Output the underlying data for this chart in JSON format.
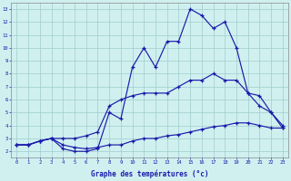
{
  "background_color": "#d0f0f0",
  "grid_color": "#a0cccc",
  "line_color": "#1a1aaa",
  "ylim": [
    1.5,
    13.5
  ],
  "xlim": [
    -0.5,
    23.5
  ],
  "yticks": [
    2,
    3,
    4,
    5,
    6,
    7,
    8,
    9,
    10,
    11,
    12,
    13
  ],
  "xticks": [
    0,
    1,
    2,
    3,
    4,
    5,
    6,
    7,
    8,
    9,
    10,
    11,
    12,
    13,
    14,
    15,
    16,
    17,
    18,
    19,
    20,
    21,
    22,
    23
  ],
  "xlabel": "Graphe des températures (°c)",
  "line_top_y": [
    2.5,
    2.5,
    2.8,
    3.0,
    2.2,
    2.0,
    2.0,
    2.2,
    5.0,
    4.5,
    8.5,
    10.0,
    8.5,
    10.5,
    10.5,
    13.0,
    12.5,
    11.5,
    12.0,
    10.0,
    6.5,
    6.3,
    5.0,
    3.8
  ],
  "line_mid_y": [
    2.5,
    2.5,
    2.8,
    3.0,
    3.0,
    3.0,
    3.2,
    3.5,
    5.5,
    6.0,
    6.3,
    6.5,
    6.5,
    6.5,
    7.0,
    7.5,
    7.5,
    8.0,
    7.5,
    7.5,
    6.5,
    5.5,
    5.0,
    4.0
  ],
  "line_bot_y": [
    2.5,
    2.5,
    2.8,
    3.0,
    2.5,
    2.3,
    2.2,
    2.3,
    2.5,
    2.5,
    2.8,
    3.0,
    3.0,
    3.2,
    3.3,
    3.5,
    3.7,
    3.9,
    4.0,
    4.2,
    4.2,
    4.0,
    3.8,
    3.8
  ]
}
